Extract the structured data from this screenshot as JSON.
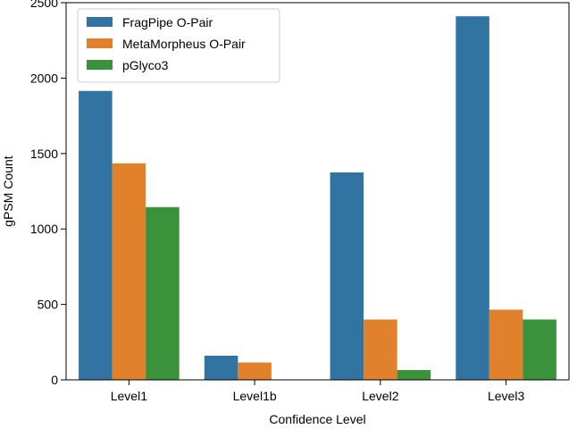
{
  "chart_data": {
    "type": "bar",
    "title": "",
    "xlabel": "Confidence Level",
    "ylabel": "gPSM Count",
    "categories": [
      "Level1",
      "Level1b",
      "Level2",
      "Level3"
    ],
    "series": [
      {
        "name": "FragPipe O-Pair",
        "color": "#3274a1",
        "values": [
          1915,
          160,
          1375,
          2410
        ]
      },
      {
        "name": "MetaMorpheus O-Pair",
        "color": "#e1812c",
        "values": [
          1435,
          115,
          400,
          465
        ]
      },
      {
        "name": "pGlyco3",
        "color": "#3a923a",
        "values": [
          1145,
          0,
          65,
          400
        ]
      }
    ],
    "ylim": [
      0,
      2500
    ],
    "yticks": [
      0,
      500,
      1000,
      1500,
      2000,
      2500
    ],
    "legend_position": "top-left",
    "grid": false
  }
}
